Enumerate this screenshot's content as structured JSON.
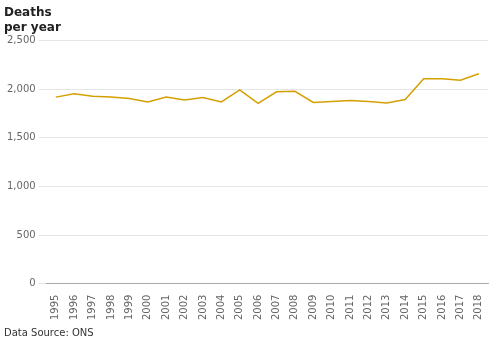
{
  "chart_data": {
    "type": "line",
    "ylabel": [
      "Deaths",
      "per year"
    ],
    "annotations": [
      "Data Source: ONS"
    ],
    "x": [
      1995,
      1996,
      1997,
      1998,
      1999,
      2000,
      2001,
      2002,
      2003,
      2004,
      2005,
      2006,
      2007,
      2008,
      2009,
      2010,
      2011,
      2012,
      2013,
      2014,
      2015,
      2016,
      2017,
      2018
    ],
    "values": [
      1920,
      1955,
      1930,
      1920,
      1905,
      1870,
      1920,
      1890,
      1915,
      1870,
      1995,
      1855,
      1975,
      1980,
      1865,
      1875,
      1885,
      1875,
      1860,
      1895,
      2110,
      2110,
      2095,
      2160
    ],
    "color": "#D4A000",
    "xlim": [
      1994.5,
      2018.5
    ],
    "xticks": [
      1995,
      1996,
      1997,
      1998,
      1999,
      2000,
      2001,
      2002,
      2003,
      2004,
      2005,
      2006,
      2007,
      2008,
      2009,
      2010,
      2011,
      2012,
      2013,
      2014,
      2015,
      2016,
      2017,
      2018
    ],
    "ylim": [
      0,
      2500
    ],
    "yticks": [
      0,
      500,
      {
        "value": 1000,
        "label": "1,000"
      },
      {
        "value": 1500,
        "label": "1,500"
      },
      {
        "value": 2000,
        "label": "2,000"
      },
      {
        "value": 2500,
        "label": "2,500"
      }
    ],
    "grid": true
  }
}
